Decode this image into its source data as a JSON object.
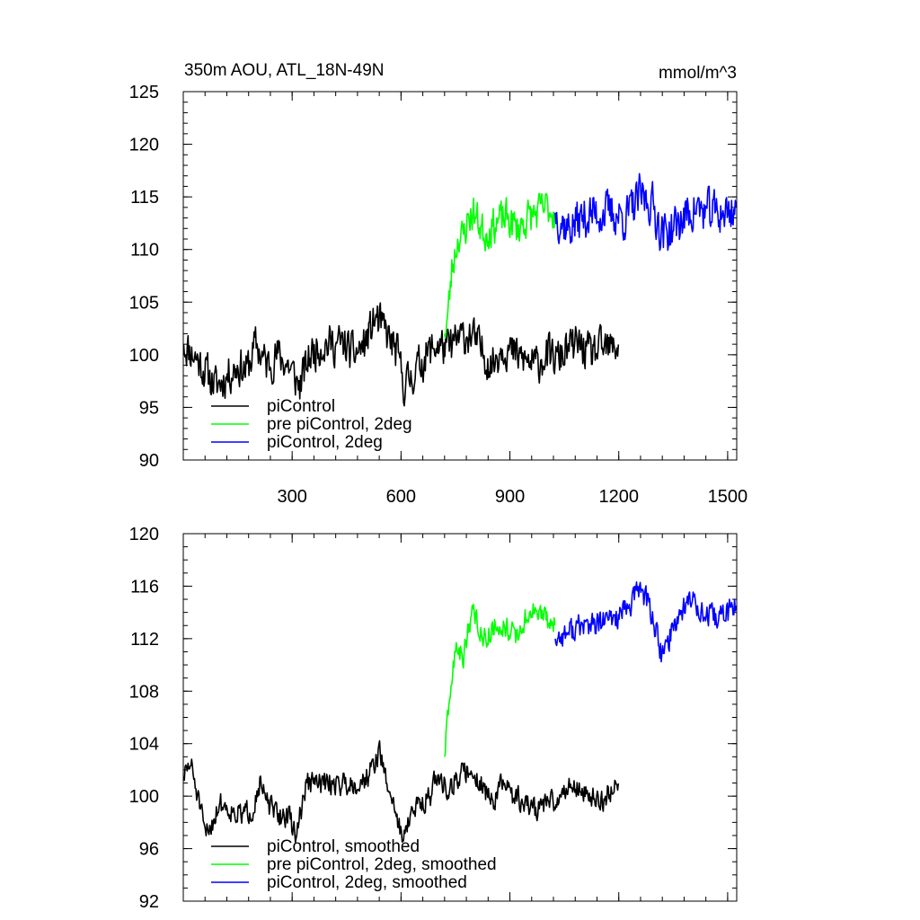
{
  "chart_data": [
    {
      "type": "line",
      "title": "350m AOU, ATL_18N-49N",
      "units_label": "mmol/m^3",
      "xlabel": "",
      "ylabel": "",
      "xlim": [
        0,
        1525
      ],
      "ylim": [
        90,
        125
      ],
      "yticks": [
        90,
        95,
        100,
        105,
        110,
        115,
        120,
        125
      ],
      "yminor_step": 1,
      "xticks": [
        300,
        600,
        900,
        1200,
        1500
      ],
      "xminor_step": 60,
      "show_xtick_labels": true,
      "legend_position": "bottom-left",
      "series": [
        {
          "name": "piControl",
          "color": "#000000",
          "x_start": 1,
          "x_end": 1200,
          "anchors": [
            [
              1,
              101
            ],
            [
              30,
              100
            ],
            [
              60,
              98.5
            ],
            [
              90,
              97
            ],
            [
              120,
              98
            ],
            [
              150,
              99
            ],
            [
              175,
              98.5
            ],
            [
              200,
              101
            ],
            [
              230,
              99
            ],
            [
              260,
              100
            ],
            [
              290,
              99
            ],
            [
              320,
              97
            ],
            [
              350,
              100
            ],
            [
              380,
              101
            ],
            [
              410,
              101
            ],
            [
              440,
              101
            ],
            [
              470,
              100
            ],
            [
              500,
              101
            ],
            [
              530,
              103.5
            ],
            [
              560,
              102
            ],
            [
              590,
              100
            ],
            [
              610,
              97
            ],
            [
              640,
              98.5
            ],
            [
              670,
              100
            ],
            [
              700,
              101
            ],
            [
              730,
              100.5
            ],
            [
              760,
              101.5
            ],
            [
              790,
              102
            ],
            [
              820,
              100.5
            ],
            [
              850,
              99
            ],
            [
              880,
              101
            ],
            [
              910,
              100
            ],
            [
              940,
              99.5
            ],
            [
              970,
              99
            ],
            [
              1000,
              100
            ],
            [
              1030,
              99.5
            ],
            [
              1060,
              100.5
            ],
            [
              1090,
              101
            ],
            [
              1120,
              100
            ],
            [
              1150,
              100.5
            ],
            [
              1180,
              100.5
            ],
            [
              1200,
              101
            ]
          ],
          "noise": 1.7,
          "seed": 11
        },
        {
          "name": "pre piControl, 2deg",
          "color": "#00ff00",
          "x_start": 720,
          "x_end": 1025,
          "anchors": [
            [
              720,
              102
            ],
            [
              730,
              104
            ],
            [
              740,
              108
            ],
            [
              750,
              110
            ],
            [
              760,
              111.5
            ],
            [
              770,
              111
            ],
            [
              785,
              113
            ],
            [
              800,
              113.5
            ],
            [
              830,
              111.5
            ],
            [
              860,
              112.5
            ],
            [
              890,
              113
            ],
            [
              920,
              112
            ],
            [
              950,
              113
            ],
            [
              980,
              113.5
            ],
            [
              1000,
              114
            ],
            [
              1025,
              113.5
            ]
          ],
          "noise": 1.6,
          "seed": 23
        },
        {
          "name": "piControl, 2deg",
          "color": "#0000ff",
          "x_start": 1025,
          "x_end": 1525,
          "anchors": [
            [
              1025,
              113.5
            ],
            [
              1060,
              112
            ],
            [
              1100,
              113
            ],
            [
              1140,
              113.5
            ],
            [
              1180,
              113.5
            ],
            [
              1220,
              113
            ],
            [
              1260,
              115
            ],
            [
              1290,
              114.5
            ],
            [
              1320,
              111.5
            ],
            [
              1350,
              112
            ],
            [
              1380,
              113
            ],
            [
              1410,
              114
            ],
            [
              1440,
              113.5
            ],
            [
              1470,
              113.5
            ],
            [
              1500,
              113.5
            ],
            [
              1525,
              114
            ]
          ],
          "noise": 1.9,
          "seed": 37
        }
      ]
    },
    {
      "type": "line",
      "title": "",
      "xlabel": "",
      "ylabel": "",
      "xlim": [
        0,
        1525
      ],
      "ylim": [
        92,
        120
      ],
      "yticks": [
        92,
        96,
        100,
        104,
        108,
        112,
        116,
        120
      ],
      "yminor_step": 1,
      "xticks": [
        300,
        600,
        900,
        1200,
        1500
      ],
      "xminor_step": 60,
      "show_xtick_labels": false,
      "legend_position": "bottom-left",
      "series": [
        {
          "name": "piControl, smoothed",
          "color": "#000000",
          "x_start": 1,
          "x_end": 1200,
          "anchors": [
            [
              1,
              101.5
            ],
            [
              20,
              102.5
            ],
            [
              40,
              100
            ],
            [
              60,
              97
            ],
            [
              80,
              98
            ],
            [
              100,
              99.5
            ],
            [
              130,
              99
            ],
            [
              160,
              98.5
            ],
            [
              190,
              99
            ],
            [
              210,
              101
            ],
            [
              230,
              99.5
            ],
            [
              260,
              98.5
            ],
            [
              290,
              98.5
            ],
            [
              310,
              97
            ],
            [
              340,
              101
            ],
            [
              370,
              101
            ],
            [
              400,
              101
            ],
            [
              430,
              101
            ],
            [
              460,
              101
            ],
            [
              490,
              101
            ],
            [
              520,
              102
            ],
            [
              540,
              103.5
            ],
            [
              560,
              101
            ],
            [
              580,
              99.5
            ],
            [
              600,
              97
            ],
            [
              620,
              98
            ],
            [
              650,
              99.5
            ],
            [
              680,
              100
            ],
            [
              700,
              101.5
            ],
            [
              730,
              100.5
            ],
            [
              760,
              101.5
            ],
            [
              790,
              102
            ],
            [
              820,
              101
            ],
            [
              850,
              99.5
            ],
            [
              880,
              101
            ],
            [
              910,
              100
            ],
            [
              940,
              99.5
            ],
            [
              970,
              99
            ],
            [
              1000,
              99.5
            ],
            [
              1030,
              99.5
            ],
            [
              1060,
              101
            ],
            [
              1090,
              100.5
            ],
            [
              1120,
              100
            ],
            [
              1150,
              99.5
            ],
            [
              1180,
              100.5
            ],
            [
              1200,
              101
            ]
          ],
          "noise": 0.8,
          "seed": 51
        },
        {
          "name": "pre piControl, 2deg, smoothed",
          "color": "#00ff00",
          "x_start": 720,
          "x_end": 1025,
          "anchors": [
            [
              720,
              103
            ],
            [
              730,
              106
            ],
            [
              740,
              109
            ],
            [
              750,
              111
            ],
            [
              760,
              111.5
            ],
            [
              770,
              110
            ],
            [
              785,
              113
            ],
            [
              800,
              114
            ],
            [
              830,
              112
            ],
            [
              860,
              113
            ],
            [
              890,
              113
            ],
            [
              920,
              112
            ],
            [
              950,
              114
            ],
            [
              980,
              114
            ],
            [
              1000,
              113.5
            ],
            [
              1025,
              113
            ]
          ],
          "noise": 0.8,
          "seed": 63
        },
        {
          "name": "piControl, 2deg, smoothed",
          "color": "#0000ff",
          "x_start": 1025,
          "x_end": 1525,
          "anchors": [
            [
              1025,
              112
            ],
            [
              1060,
              112.5
            ],
            [
              1100,
              113
            ],
            [
              1140,
              113
            ],
            [
              1180,
              113.5
            ],
            [
              1220,
              114
            ],
            [
              1260,
              116
            ],
            [
              1290,
              114
            ],
            [
              1320,
              110.5
            ],
            [
              1350,
              113
            ],
            [
              1380,
              114.5
            ],
            [
              1410,
              115
            ],
            [
              1440,
              113.5
            ],
            [
              1470,
              113.5
            ],
            [
              1500,
              114
            ],
            [
              1525,
              114.5
            ]
          ],
          "noise": 0.9,
          "seed": 77
        }
      ]
    }
  ]
}
